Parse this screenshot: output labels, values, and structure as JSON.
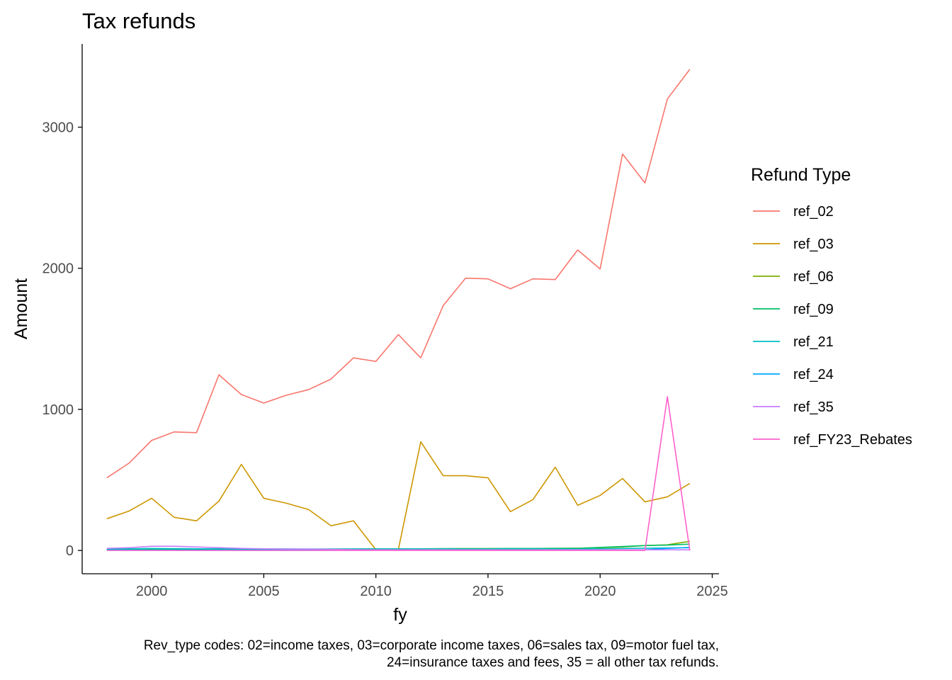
{
  "chart_data": {
    "type": "line",
    "title": "Tax refunds",
    "xlabel": "fy",
    "ylabel": "Amount",
    "xlim": [
      1996.9,
      2025.3
    ],
    "ylim": [
      -165,
      3590
    ],
    "xticks": [
      2000,
      2005,
      2010,
      2015,
      2020,
      2025
    ],
    "yticks": [
      0,
      1000,
      2000,
      3000
    ],
    "grid": false,
    "legend": {
      "title": "Refund Type",
      "position": "right"
    },
    "caption": [
      "Rev_type codes: 02=income taxes, 03=corporate income taxes, 06=sales tax, 09=motor fuel tax,",
      "24=insurance taxes and fees, 35 = all other tax refunds."
    ],
    "x": [
      1998,
      1999,
      2000,
      2001,
      2002,
      2003,
      2004,
      2005,
      2006,
      2007,
      2008,
      2009,
      2010,
      2011,
      2012,
      2013,
      2014,
      2015,
      2016,
      2017,
      2018,
      2019,
      2020,
      2021,
      2022,
      2023,
      2024
    ],
    "series": [
      {
        "name": "ref_02",
        "color": "#F8766D",
        "values": [
          515,
          620,
          780,
          840,
          835,
          1245,
          1105,
          1045,
          1100,
          1140,
          1215,
          1365,
          1340,
          1530,
          1365,
          1735,
          1930,
          1925,
          1855,
          1925,
          1920,
          2130,
          1995,
          2810,
          2605,
          3200,
          3410
        ]
      },
      {
        "name": "ref_03",
        "color": "#CD9600",
        "values": [
          225,
          280,
          370,
          235,
          210,
          350,
          610,
          370,
          335,
          290,
          175,
          210,
          5,
          5,
          770,
          530,
          530,
          515,
          275,
          360,
          590,
          320,
          390,
          510,
          345,
          380,
          475
        ]
      },
      {
        "name": "ref_06",
        "color": "#7CAE00",
        "values": [
          3,
          5,
          6,
          6,
          6,
          7,
          8,
          8,
          8,
          9,
          10,
          10,
          12,
          12,
          12,
          12,
          13,
          13,
          13,
          14,
          15,
          16,
          20,
          25,
          35,
          40,
          65
        ]
      },
      {
        "name": "ref_09",
        "color": "#00BE67",
        "values": [
          5,
          6,
          6,
          7,
          7,
          8,
          8,
          9,
          9,
          10,
          10,
          11,
          12,
          12,
          12,
          13,
          13,
          13,
          14,
          14,
          15,
          15,
          22,
          28,
          35,
          38,
          45
        ]
      },
      {
        "name": "ref_21",
        "color": "#00BFC4",
        "values": [
          10,
          12,
          14,
          13,
          12,
          12,
          11,
          11,
          11,
          10,
          10,
          10,
          10,
          10,
          10,
          10,
          10,
          10,
          10,
          10,
          10,
          10,
          12,
          14,
          16,
          18,
          20
        ]
      },
      {
        "name": "ref_24",
        "color": "#00A9FF",
        "values": [
          2,
          2,
          2,
          2,
          2,
          2,
          2,
          2,
          2,
          2,
          2,
          2,
          2,
          2,
          2,
          2,
          2,
          2,
          2,
          2,
          2,
          2,
          2,
          3,
          5,
          15,
          22
        ]
      },
      {
        "name": "ref_35",
        "color": "#C77CFF",
        "values": [
          15,
          20,
          30,
          30,
          25,
          20,
          15,
          12,
          10,
          10,
          8,
          6,
          5,
          5,
          5,
          5,
          5,
          5,
          5,
          5,
          5,
          5,
          5,
          5,
          5,
          5,
          5
        ]
      },
      {
        "name": "ref_FY23_Rebates",
        "color": "#FF61CC",
        "values": [
          0,
          0,
          0,
          0,
          0,
          0,
          0,
          0,
          0,
          0,
          0,
          0,
          0,
          0,
          0,
          0,
          0,
          0,
          0,
          0,
          0,
          0,
          0,
          0,
          0,
          1090,
          0
        ]
      }
    ]
  }
}
